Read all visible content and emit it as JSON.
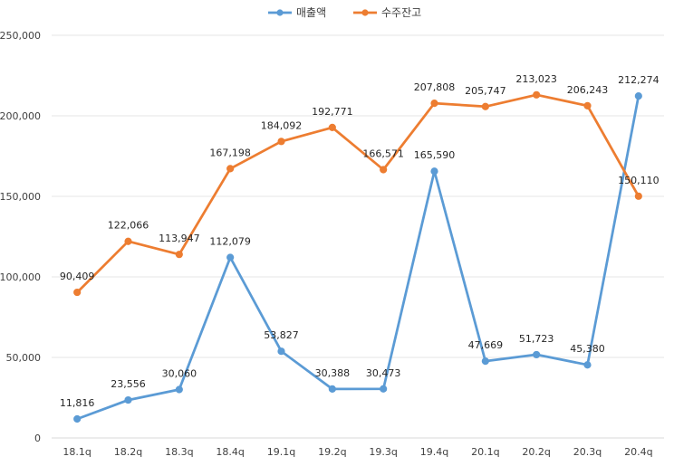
{
  "chart_data": {
    "type": "line",
    "categories": [
      "18.1q",
      "18.2q",
      "18.3q",
      "18.4q",
      "19.1q",
      "19.2q",
      "19.3q",
      "19.4q",
      "20.1q",
      "20.2q",
      "20.3q",
      "20.4q"
    ],
    "series": [
      {
        "name": "매출액",
        "color": "#5b9bd5",
        "values": [
          11816,
          23556,
          30060,
          112079,
          53827,
          30388,
          30473,
          165590,
          47669,
          51723,
          45380,
          212274
        ]
      },
      {
        "name": "수주잔고",
        "color": "#ed7d31",
        "values": [
          90409,
          122066,
          113947,
          167198,
          184092,
          192771,
          166571,
          207808,
          205747,
          213023,
          206243,
          150110
        ]
      }
    ],
    "data_labels": [
      [
        "11,816",
        "23,556",
        "30,060",
        "112,079",
        "53,827",
        "30,388",
        "30,473",
        "165,590",
        "47,669",
        "51,723",
        "45,380",
        "212,274"
      ],
      [
        "90,409",
        "122,066",
        "113,947",
        "167,198",
        "184,092",
        "192,771",
        "166,571",
        "207,808",
        "205,747",
        "213,023",
        "206,243",
        "150,110"
      ]
    ],
    "y_ticks": [
      "0",
      "50,000",
      "100,000",
      "150,000",
      "200,000",
      "250,000"
    ],
    "ylim": [
      0,
      250000
    ],
    "grid": true,
    "legend_position": "top-center"
  }
}
